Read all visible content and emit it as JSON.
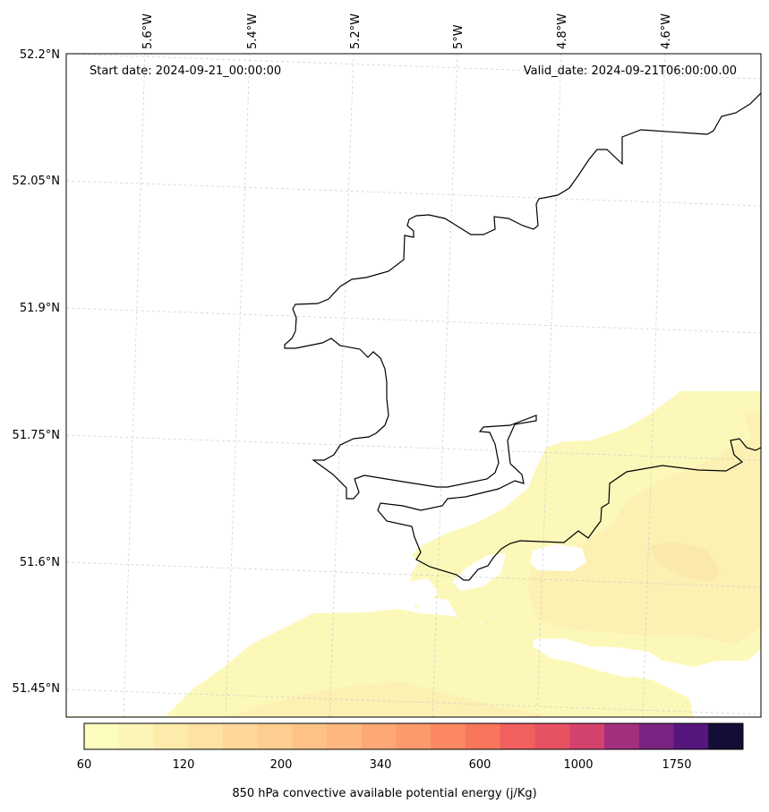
{
  "header": {
    "start_date": "Start date: 2024-09-21_00:00:00",
    "valid_date": "Valid_date: 2024-09-21T06:00:00.00"
  },
  "map": {
    "longitude_labels": [
      "5.6°W",
      "5.4°W",
      "5.2°W",
      "5°W",
      "4.8°W",
      "4.6°W"
    ],
    "latitude_labels": [
      "52.2°N",
      "52.05°N",
      "51.9°N",
      "51.75°N",
      "51.6°N",
      "51.45°N"
    ],
    "gridlines": true
  },
  "colorbar": {
    "tick_labels": [
      "60",
      "120",
      "200",
      "340",
      "600",
      "1000",
      "1750"
    ],
    "label": "850 hPa convective available potential energy (j/Kg)",
    "colors": [
      "#fcfdbf",
      "#fcf4b6",
      "#fdebac",
      "#fde2a3",
      "#fed799",
      "#fecd90",
      "#fec287",
      "#feb77e",
      "#fda875",
      "#fd9a6b",
      "#fb8861",
      "#f8765c",
      "#f1605d",
      "#e75263",
      "#d3436e",
      "#a3307e",
      "#7b2382",
      "#57157e",
      "#140e36"
    ]
  }
}
